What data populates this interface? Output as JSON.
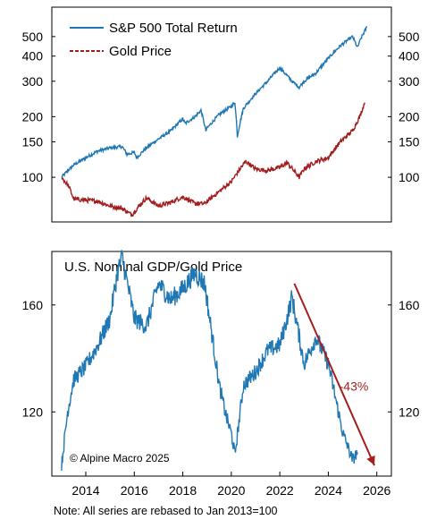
{
  "chart_data": [
    {
      "type": "line",
      "y_scale": "log",
      "ylim": [
        60,
        700
      ],
      "xlim": [
        2012.6,
        2026.6
      ],
      "yticks": [
        "100",
        "150",
        "200",
        "300",
        "400",
        "500"
      ],
      "legend": [
        {
          "name": "S&P 500 Total Return",
          "color": "#1f77b4",
          "style": "solid"
        },
        {
          "name": "Gold Price",
          "color": "#a31f1f",
          "style": "dashed"
        }
      ],
      "series": [
        {
          "name": "S&P 500 Total Return",
          "color": "#1f77b4",
          "x": [
            2013.0,
            2013.5,
            2014.0,
            2014.5,
            2015.0,
            2015.5,
            2015.7,
            2016.0,
            2016.1,
            2016.5,
            2017.0,
            2017.5,
            2018.0,
            2018.1,
            2018.5,
            2018.75,
            2018.95,
            2019.0,
            2019.5,
            2020.0,
            2020.15,
            2020.25,
            2020.5,
            2021.0,
            2021.5,
            2022.0,
            2022.5,
            2022.8,
            2023.0,
            2023.5,
            2024.0,
            2024.5,
            2025.0,
            2025.2,
            2025.35,
            2025.6
          ],
          "values": [
            100,
            115,
            125,
            135,
            140,
            142,
            130,
            133,
            125,
            140,
            155,
            170,
            195,
            185,
            200,
            215,
            170,
            175,
            205,
            225,
            235,
            160,
            220,
            260,
            300,
            350,
            300,
            280,
            300,
            330,
            390,
            450,
            500,
            440,
            490,
            560
          ]
        },
        {
          "name": "Gold Price",
          "color": "#a31f1f",
          "x": [
            2013.0,
            2013.3,
            2013.5,
            2014.0,
            2014.5,
            2015.0,
            2015.5,
            2015.9,
            2016.5,
            2017.0,
            2017.5,
            2018.0,
            2018.5,
            2018.9,
            2019.5,
            2020.0,
            2020.6,
            2021.0,
            2021.5,
            2022.0,
            2022.3,
            2022.8,
            2023.0,
            2023.5,
            2024.0,
            2024.5,
            2025.0,
            2025.3,
            2025.5
          ],
          "values": [
            100,
            90,
            78,
            77,
            76,
            72,
            70,
            65,
            79,
            72,
            75,
            80,
            74,
            74,
            85,
            95,
            120,
            110,
            108,
            112,
            118,
            100,
            110,
            120,
            125,
            150,
            170,
            200,
            235
          ]
        }
      ]
    },
    {
      "type": "line",
      "title": "U.S. Nominal GDP/Gold Price",
      "ylim": [
        96,
        180
      ],
      "xlim": [
        2012.6,
        2026.6
      ],
      "yticks": [
        "120",
        "160"
      ],
      "xticks": [
        "2014",
        "2016",
        "2018",
        "2020",
        "2022",
        "2024",
        "2026"
      ],
      "series": [
        {
          "name": "",
          "color": "#1f77b4",
          "x": [
            2013.0,
            2013.25,
            2013.5,
            2014.0,
            2014.5,
            2015.0,
            2015.3,
            2015.5,
            2016.0,
            2016.5,
            2017.0,
            2017.5,
            2018.0,
            2018.5,
            2018.9,
            2019.5,
            2019.8,
            2020.0,
            2020.15,
            2020.5,
            2021.0,
            2021.5,
            2022.0,
            2022.3,
            2022.5,
            2022.8,
            2023.0,
            2023.5,
            2024.0,
            2024.3,
            2024.6,
            2025.0,
            2025.2
          ],
          "values": [
            100,
            120,
            132,
            137,
            145,
            155,
            172,
            178,
            155,
            152,
            168,
            162,
            166,
            172,
            168,
            130,
            118,
            112,
            104,
            130,
            135,
            143,
            145,
            155,
            163,
            148,
            138,
            148,
            138,
            125,
            112,
            102,
            105
          ]
        }
      ],
      "arrow": {
        "from": {
          "x": 2022.6,
          "y": 168
        },
        "to": {
          "x": 2025.9,
          "y": 100
        },
        "color": "#a31f1f"
      },
      "annotation": {
        "text": "-43%",
        "x": 2024.45,
        "y": 128,
        "color": "#a31f1f"
      }
    }
  ],
  "copyright": "© Alpine Macro 2025",
  "note": "Note: All series are rebased to Jan 2013=100"
}
